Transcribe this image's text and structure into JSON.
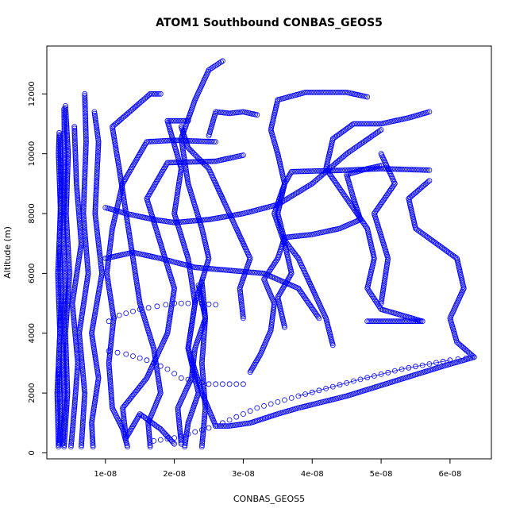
{
  "chart_data": {
    "type": "scatter",
    "title": "ATOM1 Southbound CONBAS_GEOS5",
    "xlabel": "CONBAS_GEOS5",
    "ylabel": "Altitude (m)",
    "xlim": [
      1.5e-09,
      6.6e-08
    ],
    "ylim": [
      -200,
      13600
    ],
    "x_ticks": [
      {
        "value": 1e-08,
        "label": "1e-08"
      },
      {
        "value": 2e-08,
        "label": "2e-08"
      },
      {
        "value": 3e-08,
        "label": "3e-08"
      },
      {
        "value": 4e-08,
        "label": "4e-08"
      },
      {
        "value": 5e-08,
        "label": "5e-08"
      },
      {
        "value": 6e-08,
        "label": "6e-08"
      }
    ],
    "y_ticks": [
      {
        "value": 0,
        "label": "0"
      },
      {
        "value": 2000,
        "label": "2000"
      },
      {
        "value": 4000,
        "label": "4000"
      },
      {
        "value": 6000,
        "label": "6000"
      },
      {
        "value": 8000,
        "label": "8000"
      },
      {
        "value": 10000,
        "label": "10000"
      },
      {
        "value": 12000,
        "label": "12000"
      }
    ],
    "grid": false,
    "marker": "open-circle",
    "color": "#0000ff",
    "series": [
      {
        "points": [
          [
            3.2e-09,
            200
          ],
          [
            3e-09,
            2000
          ],
          [
            3.4e-09,
            4000
          ],
          [
            3.1e-09,
            6000
          ],
          [
            3.5e-09,
            8000
          ],
          [
            3.2e-09,
            10000
          ],
          [
            3.3e-09,
            10700
          ]
        ]
      },
      {
        "points": [
          [
            4e-09,
            200
          ],
          [
            4.5e-09,
            2000
          ],
          [
            4.2e-09,
            4000
          ],
          [
            4.8e-09,
            6000
          ],
          [
            4.3e-09,
            8000
          ],
          [
            4.6e-09,
            10000
          ],
          [
            4.2e-09,
            11600
          ]
        ]
      },
      {
        "points": [
          [
            5e-09,
            200
          ],
          [
            5.5e-09,
            1500
          ],
          [
            6e-09,
            3000
          ],
          [
            5.2e-09,
            5000
          ],
          [
            6.5e-09,
            7000
          ],
          [
            5.8e-09,
            9000
          ],
          [
            5.5e-09,
            10900
          ]
        ]
      },
      {
        "points": [
          [
            6.5e-09,
            200
          ],
          [
            7e-09,
            2000
          ],
          [
            6.2e-09,
            4000
          ],
          [
            7.5e-09,
            6000
          ],
          [
            6.8e-09,
            8000
          ],
          [
            7.2e-09,
            10400
          ],
          [
            7e-09,
            12000
          ]
        ]
      },
      {
        "points": [
          [
            8.2e-09,
            200
          ],
          [
            8e-09,
            1000
          ],
          [
            9e-09,
            2500
          ],
          [
            8e-09,
            4000
          ],
          [
            9.5e-09,
            6000
          ],
          [
            8.5e-09,
            8000
          ],
          [
            9e-09,
            10400
          ],
          [
            8.4e-09,
            11400
          ]
        ]
      },
      {
        "points": [
          [
            1.32e-08,
            200
          ],
          [
            1.25e-08,
            800
          ],
          [
            1.1e-08,
            1500
          ],
          [
            1.05e-08,
            3000
          ],
          [
            1.12e-08,
            4500
          ],
          [
            1.02e-08,
            6000
          ],
          [
            1.1e-08,
            7500
          ],
          [
            1.25e-08,
            9000
          ],
          [
            1.6e-08,
            10400
          ],
          [
            2e-08,
            10450
          ],
          [
            2.6e-08,
            10400
          ]
        ]
      },
      {
        "points": [
          [
            1.65e-08,
            200
          ],
          [
            1.62e-08,
            1000
          ],
          [
            1.8e-08,
            2000
          ],
          [
            1.7e-08,
            3500
          ],
          [
            1.5e-08,
            5000
          ],
          [
            1.4e-08,
            6500
          ],
          [
            1.3e-08,
            8000
          ],
          [
            1.2e-08,
            9500
          ],
          [
            1.1e-08,
            10900
          ],
          [
            1.4e-08,
            11500
          ],
          [
            1.65e-08,
            12000
          ],
          [
            1.8e-08,
            12000
          ]
        ]
      },
      {
        "points": [
          [
            2.15e-08,
            200
          ],
          [
            2.2e-08,
            1000
          ],
          [
            2.35e-08,
            2000
          ],
          [
            2.2e-08,
            3500
          ],
          [
            2.3e-08,
            5000
          ],
          [
            2.2e-08,
            6500
          ],
          [
            2e-08,
            8000
          ],
          [
            2.1e-08,
            9500
          ],
          [
            1.9e-08,
            11100
          ],
          [
            2.2e-08,
            11100
          ]
        ]
      },
      {
        "points": [
          [
            2.1e-08,
            300
          ],
          [
            2.05e-08,
            1500
          ],
          [
            2.25e-08,
            2500
          ],
          [
            2.3e-08,
            3500
          ],
          [
            2.45e-08,
            4500
          ],
          [
            2.35e-08,
            5600
          ]
        ]
      },
      {
        "points": [
          [
            2.4e-08,
            200
          ],
          [
            2.45e-08,
            1500
          ],
          [
            2.4e-08,
            3000
          ],
          [
            2.45e-08,
            4500
          ],
          [
            2.4e-08,
            5700
          ]
        ]
      },
      {
        "points": [
          [
            2e-08,
            300
          ],
          [
            1.8e-08,
            800
          ],
          [
            1.5e-08,
            1300
          ],
          [
            1.3e-08,
            500
          ],
          [
            1.25e-08,
            1500
          ],
          [
            1.6e-08,
            2500
          ],
          [
            1.9e-08,
            4000
          ],
          [
            2e-08,
            5500
          ],
          [
            1.8e-08,
            7000
          ],
          [
            1.6e-08,
            8500
          ],
          [
            1.9e-08,
            9700
          ],
          [
            2.6e-08,
            9750
          ],
          [
            3e-08,
            9950
          ]
        ]
      },
      {
        "points": [
          [
            2.6e-08,
            900
          ],
          [
            2.4e-08,
            2000
          ],
          [
            2.2e-08,
            3500
          ],
          [
            2.3e-08,
            5000
          ],
          [
            2.5e-08,
            6500
          ],
          [
            2.4e-08,
            7500
          ],
          [
            2.2e-08,
            9000
          ],
          [
            2.1e-08,
            10500
          ],
          [
            2.3e-08,
            11800
          ],
          [
            2.5e-08,
            12800
          ],
          [
            2.7e-08,
            13100
          ]
        ]
      },
      {
        "points": [
          [
            2.6e-08,
            900
          ],
          [
            2.8e-08,
            900
          ],
          [
            3.1e-08,
            1000
          ],
          [
            3.5e-08,
            1300
          ],
          [
            3.8e-08,
            1500
          ],
          [
            4.5e-08,
            1900
          ],
          [
            5.2e-08,
            2400
          ],
          [
            5.9e-08,
            2900
          ],
          [
            6.35e-08,
            3200
          ],
          [
            6.1e-08,
            3700
          ],
          [
            6e-08,
            4500
          ],
          [
            6.2e-08,
            5500
          ],
          [
            6.1e-08,
            6500
          ],
          [
            5.8e-08,
            7000
          ],
          [
            5.5e-08,
            7500
          ],
          [
            5.4e-08,
            8500
          ],
          [
            5.7e-08,
            9100
          ]
        ]
      },
      {
        "points": [
          [
            6.35e-08,
            3200
          ],
          [
            6e-08,
            3100
          ],
          [
            5.3e-08,
            2800
          ],
          [
            4.6e-08,
            2400
          ],
          [
            3.8e-08,
            1900
          ],
          [
            3.2e-08,
            1500
          ],
          [
            2.6e-08,
            900
          ],
          [
            2e-08,
            500
          ],
          [
            1.7e-08,
            400
          ]
        ]
      },
      {
        "points": [
          [
            3.1e-08,
            2700
          ],
          [
            3.25e-08,
            3300
          ],
          [
            3.4e-08,
            4100
          ],
          [
            3.45e-08,
            5000
          ],
          [
            3.3e-08,
            5800
          ],
          [
            3.5e-08,
            6500
          ],
          [
            3.6e-08,
            7200
          ],
          [
            4e-08,
            7300
          ],
          [
            4.4e-08,
            7500
          ],
          [
            4.7e-08,
            7800
          ],
          [
            4.6e-08,
            8500
          ],
          [
            4.5e-08,
            9300
          ],
          [
            4.8e-08,
            9500
          ],
          [
            5e-08,
            9600
          ]
        ]
      },
      {
        "points": [
          [
            4.3e-08,
            3600
          ],
          [
            4.2e-08,
            4500
          ],
          [
            4e-08,
            5500
          ],
          [
            3.8e-08,
            6500
          ],
          [
            3.6e-08,
            7100
          ],
          [
            3.5e-08,
            8000
          ],
          [
            3.6e-08,
            9000
          ],
          [
            3.7e-08,
            9400
          ],
          [
            4.5e-08,
            9450
          ],
          [
            5e-08,
            9500
          ],
          [
            5.7e-08,
            9450
          ]
        ]
      },
      {
        "points": [
          [
            3e-08,
            4500
          ],
          [
            2.95e-08,
            5500
          ],
          [
            3.1e-08,
            6500
          ],
          [
            2.9e-08,
            7500
          ],
          [
            2.7e-08,
            8500
          ],
          [
            2.5e-08,
            9500
          ],
          [
            2.2e-08,
            10200
          ],
          [
            2.1e-08,
            10900
          ]
        ]
      },
      {
        "points": [
          [
            3.6e-08,
            4200
          ],
          [
            3.5e-08,
            5200
          ],
          [
            3.7e-08,
            6000
          ],
          [
            3.6e-08,
            7000
          ],
          [
            3.45e-08,
            8000
          ],
          [
            3.6e-08,
            9000
          ],
          [
            3.5e-08,
            10000
          ],
          [
            3.4e-08,
            10800
          ],
          [
            3.5e-08,
            11800
          ],
          [
            3.9e-08,
            12050
          ],
          [
            4.5e-08,
            12050
          ],
          [
            4.8e-08,
            11900
          ]
        ]
      },
      {
        "points": [
          [
            4.8e-08,
            4400
          ],
          [
            5.3e-08,
            4400
          ],
          [
            5.6e-08,
            4400
          ],
          [
            5e-08,
            4800
          ],
          [
            4.8e-08,
            5500
          ],
          [
            4.9e-08,
            6500
          ],
          [
            4.8e-08,
            7500
          ],
          [
            4.5e-08,
            8500
          ],
          [
            4.2e-08,
            9500
          ],
          [
            4.3e-08,
            10500
          ],
          [
            4.6e-08,
            11000
          ],
          [
            5e-08,
            11000
          ],
          [
            5.4e-08,
            11200
          ],
          [
            5.7e-08,
            11400
          ]
        ]
      },
      {
        "points": [
          [
            2.6e-08,
            4950
          ],
          [
            2.3e-08,
            5000
          ],
          [
            2e-08,
            5000
          ],
          [
            1.75e-08,
            4900
          ],
          [
            1.5e-08,
            4800
          ],
          [
            1.2e-08,
            4600
          ],
          [
            1.05e-08,
            4400
          ]
        ]
      },
      {
        "points": [
          [
            1.05e-08,
            3400
          ],
          [
            1.3e-08,
            3300
          ],
          [
            1.6e-08,
            3100
          ],
          [
            1.9e-08,
            2800
          ],
          [
            2.1e-08,
            2500
          ],
          [
            2.5e-08,
            2300
          ],
          [
            3e-08,
            2300
          ]
        ]
      },
      {
        "points": [
          [
            1e-08,
            8200
          ],
          [
            1.3e-08,
            8000
          ],
          [
            1.7e-08,
            7800
          ],
          [
            2e-08,
            7700
          ],
          [
            2.5e-08,
            7800
          ],
          [
            3e-08,
            8000
          ],
          [
            3.5e-08,
            8300
          ],
          [
            4e-08,
            9000
          ],
          [
            4.5e-08,
            10000
          ],
          [
            5e-08,
            10800
          ]
        ]
      },
      {
        "points": [
          [
            1e-08,
            6500
          ],
          [
            1.4e-08,
            6700
          ],
          [
            1.8e-08,
            6500
          ],
          [
            2.3e-08,
            6200
          ],
          [
            2.8e-08,
            6100
          ],
          [
            3.3e-08,
            6000
          ],
          [
            3.8e-08,
            5500
          ],
          [
            4.1e-08,
            4500
          ]
        ]
      },
      {
        "points": [
          [
            3.2e-08,
            11300
          ],
          [
            3e-08,
            11400
          ],
          [
            2.8e-08,
            11350
          ],
          [
            2.6e-08,
            11400
          ],
          [
            2.5e-08,
            10600
          ]
        ]
      },
      {
        "points": [
          [
            5e-08,
            5000
          ],
          [
            5.1e-08,
            6500
          ],
          [
            4.9e-08,
            8000
          ],
          [
            5.2e-08,
            9000
          ],
          [
            5e-08,
            10000
          ]
        ]
      },
      {
        "points": [
          [
            3.3e-09,
            300
          ],
          [
            3.5e-09,
            1000
          ],
          [
            3.2e-09,
            3000
          ],
          [
            3.6e-09,
            5000
          ],
          [
            3.3e-09,
            7000
          ],
          [
            3.6e-09,
            9000
          ],
          [
            3.4e-09,
            10600
          ]
        ]
      },
      {
        "points": [
          [
            3.8e-09,
            300
          ],
          [
            4.1e-09,
            1500
          ],
          [
            3.9e-09,
            3500
          ],
          [
            4.2e-09,
            5500
          ],
          [
            3.9e-09,
            7500
          ],
          [
            4.1e-09,
            9500
          ],
          [
            4e-09,
            11500
          ]
        ]
      }
    ]
  }
}
